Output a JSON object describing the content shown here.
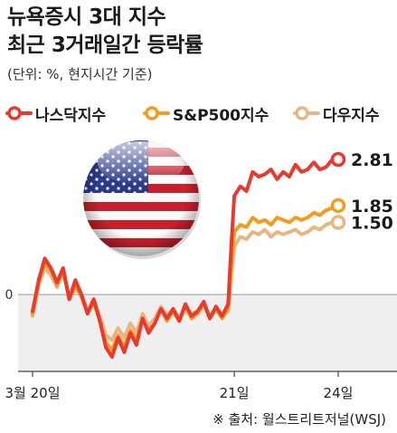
{
  "title": [
    "뉴욕증시 3대 지수",
    "최근 3거래일간 등락률"
  ],
  "unit": "(단위: %, 현지시간 기준)",
  "source": "※ 출처: 월스트리트저널(WSJ)",
  "legend": [
    {
      "name": "나스닥지수",
      "color": "#e83a2e"
    },
    {
      "name": "S&P500지수",
      "color": "#f39c1f"
    },
    {
      "name": "다우지수",
      "color": "#e6b784"
    }
  ],
  "chart_data": {
    "type": "line",
    "x_ticks": [
      "3월 20일",
      "21일",
      "24일"
    ],
    "y_ticks": [
      "0"
    ],
    "ylim": [
      -1.6,
      3.3
    ],
    "xlim": [
      0,
      100
    ],
    "tick_positions": [
      0,
      66,
      100
    ],
    "flag": "us-flag-icon",
    "series": [
      {
        "name": "나스닥지수",
        "color": "#e83a2e",
        "end_label": "2.81",
        "x": [
          0,
          2,
          4,
          6,
          8,
          10,
          12,
          14,
          16,
          18,
          20,
          22,
          24,
          26,
          28,
          30,
          32,
          34,
          36,
          38,
          40,
          42,
          44,
          46,
          48,
          50,
          52,
          54,
          56,
          58,
          60,
          62,
          64,
          65,
          66,
          68,
          70,
          72,
          74,
          76,
          78,
          80,
          82,
          84,
          86,
          88,
          90,
          92,
          94,
          96,
          98,
          100
        ],
        "values": [
          -0.35,
          0.3,
          0.75,
          0.55,
          0.25,
          0.55,
          -0.1,
          0.3,
          0.0,
          -0.4,
          -0.1,
          -0.55,
          -1.1,
          -1.3,
          -0.9,
          -1.2,
          -0.8,
          -1.05,
          -0.5,
          -0.8,
          -0.6,
          -0.3,
          -0.5,
          -0.3,
          -0.55,
          -0.2,
          -0.45,
          -0.35,
          -0.15,
          -0.5,
          -0.25,
          -0.45,
          -0.2,
          1.0,
          2.05,
          2.25,
          2.15,
          2.55,
          2.45,
          2.5,
          2.6,
          2.4,
          2.55,
          2.45,
          2.7,
          2.55,
          2.6,
          2.75,
          2.6,
          2.65,
          2.8,
          2.81
        ]
      },
      {
        "name": "S&P500지수",
        "color": "#f39c1f",
        "end_label": "1.85",
        "x": [
          0,
          2,
          4,
          6,
          8,
          10,
          12,
          14,
          16,
          18,
          20,
          22,
          24,
          26,
          28,
          30,
          32,
          34,
          36,
          38,
          40,
          42,
          44,
          46,
          48,
          50,
          52,
          54,
          56,
          58,
          60,
          62,
          64,
          65,
          66,
          68,
          70,
          72,
          74,
          76,
          78,
          80,
          82,
          84,
          86,
          88,
          90,
          92,
          94,
          96,
          98,
          100
        ],
        "values": [
          -0.4,
          0.25,
          0.65,
          0.5,
          0.2,
          0.5,
          -0.1,
          0.2,
          -0.05,
          -0.4,
          -0.15,
          -0.55,
          -1.0,
          -1.15,
          -0.85,
          -1.1,
          -0.75,
          -0.95,
          -0.5,
          -0.75,
          -0.6,
          -0.3,
          -0.55,
          -0.35,
          -0.55,
          -0.25,
          -0.5,
          -0.4,
          -0.2,
          -0.5,
          -0.3,
          -0.5,
          -0.3,
          0.6,
          1.3,
          1.45,
          1.4,
          1.6,
          1.5,
          1.55,
          1.45,
          1.6,
          1.55,
          1.5,
          1.6,
          1.55,
          1.6,
          1.7,
          1.65,
          1.75,
          1.8,
          1.85
        ]
      },
      {
        "name": "다우지수",
        "color": "#e6b784",
        "end_label": "1.50",
        "x": [
          0,
          2,
          4,
          6,
          8,
          10,
          12,
          14,
          16,
          18,
          20,
          22,
          24,
          26,
          28,
          30,
          32,
          34,
          36,
          38,
          40,
          42,
          44,
          46,
          48,
          50,
          52,
          54,
          56,
          58,
          60,
          62,
          64,
          65,
          66,
          68,
          70,
          72,
          74,
          76,
          78,
          80,
          82,
          84,
          86,
          88,
          90,
          92,
          94,
          96,
          98,
          100
        ],
        "values": [
          -0.45,
          0.2,
          0.55,
          0.4,
          0.15,
          0.45,
          -0.05,
          0.1,
          0.0,
          -0.35,
          -0.1,
          -0.45,
          -0.85,
          -0.95,
          -0.7,
          -0.9,
          -0.6,
          -0.8,
          -0.4,
          -0.65,
          -0.5,
          -0.25,
          -0.45,
          -0.3,
          -0.5,
          -0.25,
          -0.4,
          -0.35,
          -0.2,
          -0.45,
          -0.3,
          -0.45,
          -0.35,
          0.4,
          1.0,
          1.2,
          1.15,
          1.3,
          1.25,
          1.35,
          1.2,
          1.3,
          1.25,
          1.3,
          1.35,
          1.25,
          1.3,
          1.4,
          1.35,
          1.45,
          1.5,
          1.5
        ]
      }
    ]
  }
}
